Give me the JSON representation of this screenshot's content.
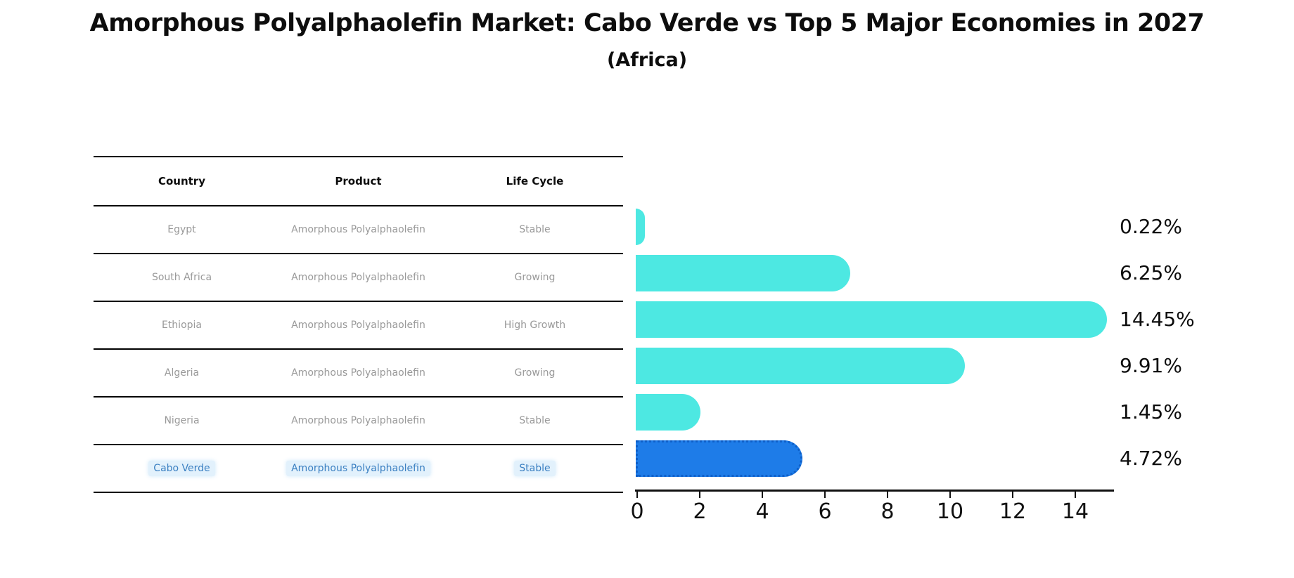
{
  "title": "Amorphous Polyalphaolefin Market: Cabo Verde vs Top 5 Major Economies in 2027",
  "subtitle": "(Africa)",
  "table": {
    "headers": [
      "Country",
      "Product",
      "Life Cycle"
    ],
    "rows": [
      {
        "country": "Egypt",
        "product": "Amorphous Polyalphaolefin",
        "life_cycle": "Stable",
        "highlight": false
      },
      {
        "country": "South Africa",
        "product": "Amorphous Polyalphaolefin",
        "life_cycle": "Growing",
        "highlight": false
      },
      {
        "country": "Ethiopia",
        "product": "Amorphous Polyalphaolefin",
        "life_cycle": "High Growth",
        "highlight": false
      },
      {
        "country": "Algeria",
        "product": "Amorphous Polyalphaolefin",
        "life_cycle": "Growing",
        "highlight": false
      },
      {
        "country": "Nigeria",
        "product": "Amorphous Polyalphaolefin",
        "life_cycle": "Stable",
        "highlight": false
      },
      {
        "country": "Cabo Verde",
        "product": "Amorphous Polyalphaolefin",
        "life_cycle": "Stable",
        "highlight": true
      }
    ]
  },
  "chart_data": {
    "type": "bar",
    "orientation": "horizontal",
    "categories": [
      "Egypt",
      "South Africa",
      "Ethiopia",
      "Algeria",
      "Nigeria",
      "Cabo Verde"
    ],
    "values": [
      0.22,
      6.25,
      14.45,
      9.91,
      1.45,
      4.72
    ],
    "value_labels": [
      "0.22%",
      "6.25%",
      "14.45%",
      "9.91%",
      "1.45%",
      "4.72%"
    ],
    "highlight_index": 5,
    "x_ticks": [
      0,
      2,
      4,
      6,
      8,
      10,
      12,
      14
    ],
    "xlim": [
      0,
      15.3
    ],
    "grid": false,
    "legend": "none",
    "bar_color": "#4de8e2",
    "highlight_bar_color": "#1e7ce8",
    "highlight_border_color": "#0e5fc8",
    "highlight_text_color": "#3b80c2"
  }
}
